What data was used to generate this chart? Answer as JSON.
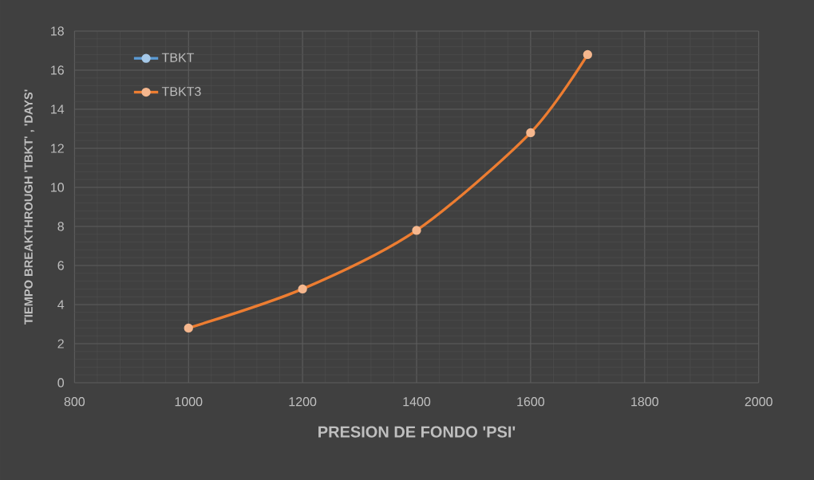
{
  "chart_data": {
    "type": "line",
    "xlabel": "PRESION DE FONDO 'PSI'",
    "ylabel": "TIEMPO BREAKTHROUGH 'TBKT' , 'DAYS'",
    "x": [
      1000,
      1200,
      1400,
      1600,
      1700
    ],
    "series": [
      {
        "name": "TBKT",
        "color": "#5b9bd5",
        "values": [
          null,
          null,
          null,
          null,
          null
        ]
      },
      {
        "name": "TBKT3",
        "color": "#ed7d31",
        "values": [
          2.8,
          4.8,
          7.8,
          12.8,
          16.8
        ]
      }
    ],
    "xlim": [
      800,
      2000
    ],
    "xticks": [
      800,
      1000,
      1200,
      1400,
      1600,
      1800,
      2000
    ],
    "ylim": [
      0,
      18
    ],
    "yticks": [
      0,
      2,
      4,
      6,
      8,
      10,
      12,
      14,
      16,
      18
    ],
    "grid": true,
    "legend": "top left",
    "marker": "circle",
    "line_style": "solid"
  }
}
